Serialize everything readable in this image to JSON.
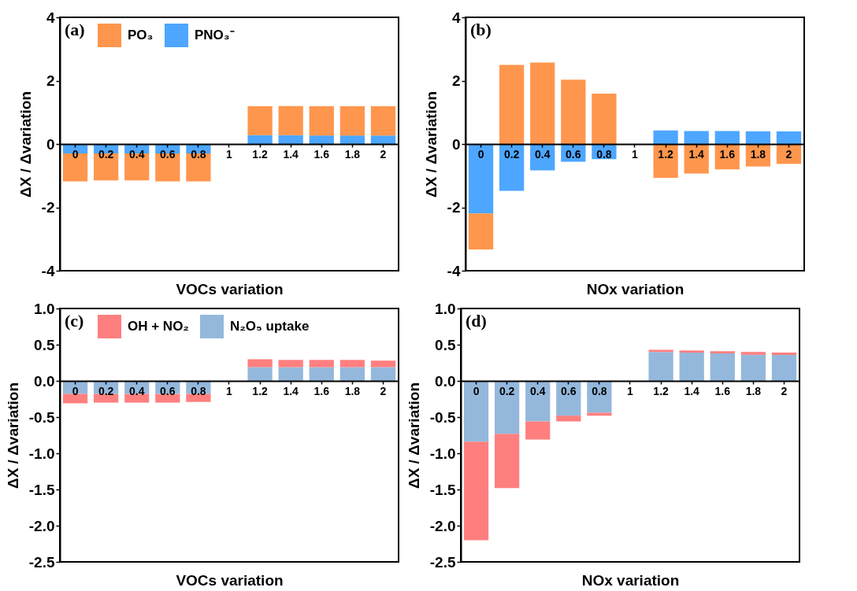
{
  "chart_data": [
    {
      "type": "bar",
      "stacked": true,
      "annotations": [
        "(a)"
      ],
      "xlabel": "VOCs variation",
      "ylabel": "ΔX / Δvariation",
      "categories": [
        "0",
        "0.2",
        "0.4",
        "0.6",
        "0.8",
        "1",
        "1.2",
        "1.4",
        "1.6",
        "1.8",
        "2"
      ],
      "ylim": [
        -4,
        4
      ],
      "yticks": [
        -4,
        -2,
        0,
        2,
        4
      ],
      "grid": false,
      "legend": "top left",
      "series": [
        {
          "name": "PNO₃⁻",
          "color": "#4da6ff",
          "values": [
            -0.3,
            -0.3,
            -0.3,
            -0.3,
            -0.3,
            null,
            0.28,
            0.28,
            0.27,
            0.27,
            0.27
          ]
        },
        {
          "name": "PO₃",
          "color": "#ff964d",
          "values": [
            -0.88,
            -0.85,
            -0.85,
            -0.88,
            -0.88,
            null,
            0.91,
            0.92,
            0.92,
            0.92,
            0.92
          ]
        }
      ]
    },
    {
      "type": "bar",
      "stacked": true,
      "annotations": [
        "(b)"
      ],
      "xlabel": "NOx variation",
      "ylabel": "ΔX / Δvariation",
      "categories": [
        "0",
        "0.2",
        "0.4",
        "0.6",
        "0.8",
        "1",
        "1.2",
        "1.4",
        "1.6",
        "1.8",
        "2"
      ],
      "ylim": [
        -4,
        4
      ],
      "yticks": [
        -4,
        -2,
        0,
        2,
        4
      ],
      "grid": false,
      "series": [
        {
          "color": "#4da6ff",
          "values": [
            -2.19,
            -1.48,
            -0.83,
            -0.56,
            -0.48,
            null,
            0.43,
            0.41,
            0.41,
            0.4,
            0.4
          ]
        },
        {
          "color": "#ff964d",
          "values": [
            -1.14,
            2.5,
            2.57,
            2.03,
            1.59,
            null,
            -1.07,
            -0.93,
            -0.8,
            -0.71,
            -0.63
          ]
        }
      ]
    },
    {
      "type": "bar",
      "stacked": true,
      "annotations": [
        "(c)"
      ],
      "xlabel": "VOCs variation",
      "ylabel": "ΔX / Δvariation",
      "categories": [
        "0",
        "0.2",
        "0.4",
        "0.6",
        "0.8",
        "1",
        "1.2",
        "1.4",
        "1.6",
        "1.8",
        "2"
      ],
      "ylim": [
        -2.5,
        1.0
      ],
      "yticks": [
        -2.5,
        {
          "value": -2,
          "label": "-2.0"
        },
        -1.5,
        {
          "value": -1,
          "label": "-1.0"
        },
        -0.5,
        {
          "value": 0,
          "label": "0.0"
        },
        0.5,
        {
          "value": 1,
          "label": "1.0"
        }
      ],
      "grid": false,
      "legend": "top left",
      "series": [
        {
          "name": "N₂O₅ uptake",
          "color": "#94b8dc",
          "values": [
            -0.18,
            -0.18,
            -0.18,
            -0.18,
            -0.18,
            null,
            0.19,
            0.19,
            0.19,
            0.19,
            0.19
          ]
        },
        {
          "name": "OH + NO₂",
          "color": "#ff7f7f",
          "values": [
            -0.13,
            -0.12,
            -0.12,
            -0.12,
            -0.11,
            null,
            0.11,
            0.1,
            0.1,
            0.1,
            0.09
          ]
        }
      ]
    },
    {
      "type": "bar",
      "stacked": true,
      "annotations": [
        "(d)"
      ],
      "xlabel": "NOx variation",
      "ylabel": "ΔX / Δvariation",
      "categories": [
        "0",
        "0.2",
        "0.4",
        "0.6",
        "0.8",
        "1",
        "1.2",
        "1.4",
        "1.6",
        "1.8",
        "2"
      ],
      "ylim": [
        -2.5,
        1.0
      ],
      "yticks": [
        -2.5,
        {
          "value": -2,
          "label": "-2.0"
        },
        -1.5,
        {
          "value": -1,
          "label": "-1.0"
        },
        -0.5,
        {
          "value": 0,
          "label": "0.0"
        },
        0.5,
        {
          "value": 1,
          "label": "1.0"
        }
      ],
      "grid": false,
      "series": [
        {
          "color": "#94b8dc",
          "values": [
            -0.84,
            -0.73,
            -0.56,
            -0.48,
            -0.44,
            null,
            0.4,
            0.39,
            0.38,
            0.36,
            0.36
          ]
        },
        {
          "color": "#ff7f7f",
          "values": [
            -1.36,
            -0.75,
            -0.25,
            -0.08,
            -0.04,
            null,
            0.03,
            0.03,
            0.03,
            0.04,
            0.03
          ]
        }
      ]
    }
  ]
}
